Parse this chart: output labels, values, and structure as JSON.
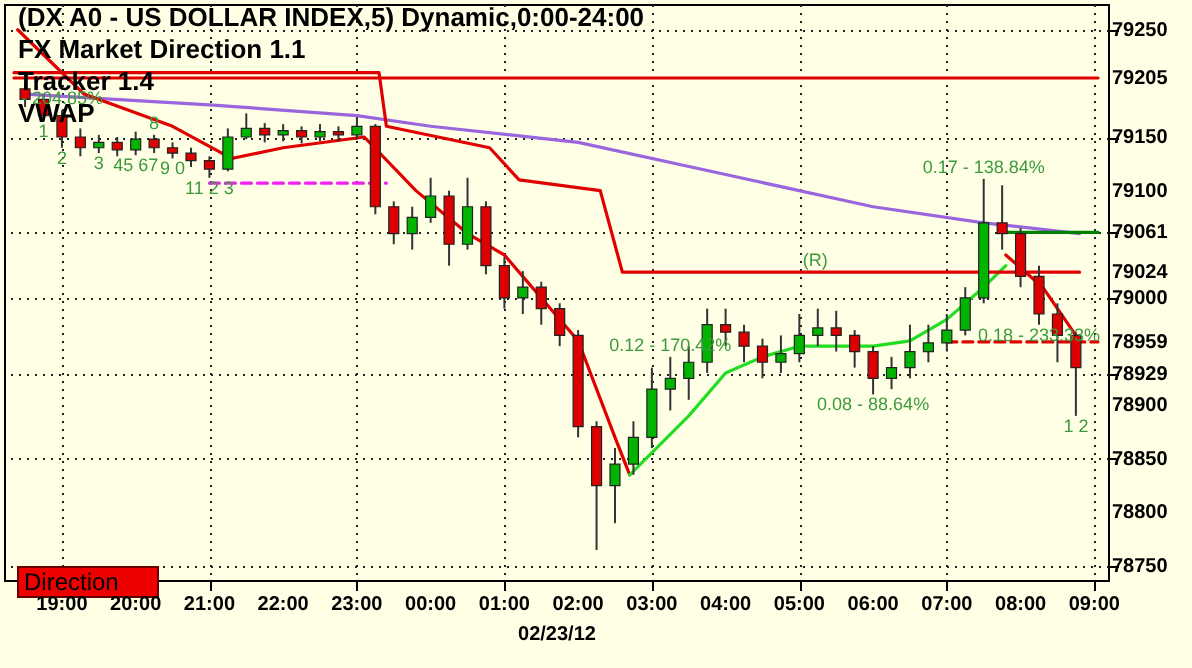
{
  "chart_data": {
    "type": "candlestick",
    "title": "(DX A0 - US DOLLAR INDEX,5) Dynamic,0:00-24:00",
    "xlabel": "02/23/12",
    "x": [
      "--02-22T18:30",
      "--02-22T18:45",
      "--02-22T19:00",
      "--02-22T19:15",
      "--02-22T19:30",
      "--02-22T19:45",
      "--02-22T20:00",
      "--02-22T20:15",
      "--02-22T20:30",
      "--02-22T20:45",
      "--02-22T21:00",
      "--02-22T21:15",
      "--02-22T21:30",
      "--02-22T21:45",
      "--02-22T22:00",
      "--02-22T22:15",
      "--02-22T22:30",
      "--02-22T22:45",
      "--02-22T23:00",
      "--02-22T23:15",
      "--02-22T23:30",
      "--02-22T23:45",
      "--02-23T00:00",
      "--02-23T00:15",
      "--02-23T00:30",
      "--02-23T00:45",
      "--02-23T01:00",
      "--02-23T01:15",
      "--02-23T01:30",
      "--02-23T01:45",
      "--02-23T02:00",
      "--02-23T02:15",
      "--02-23T02:30",
      "--02-23T02:45",
      "--02-23T03:00",
      "--02-23T03:15",
      "--02-23T03:30",
      "--02-23T03:45",
      "--02-23T04:00",
      "--02-23T04:15",
      "--02-23T04:30",
      "--02-23T04:45",
      "--02-23T05:00",
      "--02-23T05:15",
      "--02-23T05:30",
      "--02-23T05:45",
      "--02-23T06:00",
      "--02-23T06:15",
      "--02-23T06:30",
      "--02-23T06:45",
      "--02-23T07:00",
      "--02-23T07:15",
      "--02-23T07:30",
      "--02-23T07:45",
      "--02-23T08:00",
      "--02-23T08:15",
      "--02-23T08:30",
      "--02-23T08:45"
    ],
    "ohlc": [
      [
        79195,
        79200,
        79178,
        79185
      ],
      [
        79185,
        79190,
        79165,
        79170
      ],
      [
        79170,
        79175,
        79140,
        79150
      ],
      [
        79150,
        79158,
        79132,
        79140
      ],
      [
        79140,
        79152,
        79135,
        79145
      ],
      [
        79145,
        79150,
        79132,
        79138
      ],
      [
        79138,
        79155,
        79133,
        79148
      ],
      [
        79148,
        79152,
        79135,
        79140
      ],
      [
        79140,
        79145,
        79130,
        79135
      ],
      [
        79135,
        79140,
        79122,
        79128
      ],
      [
        79128,
        79132,
        79112,
        79120
      ],
      [
        79120,
        79158,
        79118,
        79150
      ],
      [
        79150,
        79172,
        79148,
        79158
      ],
      [
        79158,
        79163,
        79145,
        79152
      ],
      [
        79152,
        79162,
        79146,
        79156
      ],
      [
        79156,
        79160,
        79144,
        79150
      ],
      [
        79150,
        79162,
        79146,
        79155
      ],
      [
        79155,
        79160,
        79146,
        79152
      ],
      [
        79152,
        79168,
        79148,
        79160
      ],
      [
        79160,
        79162,
        79078,
        79085
      ],
      [
        79085,
        79090,
        79050,
        79060
      ],
      [
        79060,
        79085,
        79045,
        79075
      ],
      [
        79075,
        79112,
        79070,
        79095
      ],
      [
        79095,
        79100,
        79030,
        79050
      ],
      [
        79050,
        79112,
        79045,
        79085
      ],
      [
        79085,
        79090,
        79022,
        79030
      ],
      [
        79030,
        79038,
        78990,
        79000
      ],
      [
        79000,
        79025,
        78985,
        79010
      ],
      [
        79010,
        79015,
        78975,
        78990
      ],
      [
        78990,
        78995,
        78955,
        78965
      ],
      [
        78965,
        78970,
        78870,
        78880
      ],
      [
        78880,
        78885,
        78765,
        78825
      ],
      [
        78825,
        78860,
        78790,
        78845
      ],
      [
        78845,
        78885,
        78835,
        78870
      ],
      [
        78870,
        78935,
        78860,
        78915
      ],
      [
        78915,
        78945,
        78895,
        78925
      ],
      [
        78925,
        78955,
        78905,
        78940
      ],
      [
        78940,
        78990,
        78930,
        78975
      ],
      [
        78975,
        78990,
        78955,
        78968
      ],
      [
        78968,
        78975,
        78940,
        78955
      ],
      [
        78955,
        78962,
        78925,
        78940
      ],
      [
        78940,
        78965,
        78930,
        78948
      ],
      [
        78948,
        78985,
        78940,
        78965
      ],
      [
        78965,
        78990,
        78955,
        78972
      ],
      [
        78972,
        78988,
        78950,
        78965
      ],
      [
        78965,
        78970,
        78935,
        78950
      ],
      [
        78950,
        78955,
        78910,
        78925
      ],
      [
        78925,
        78945,
        78915,
        78935
      ],
      [
        78935,
        78975,
        78925,
        78950
      ],
      [
        78950,
        78975,
        78940,
        78958
      ],
      [
        78958,
        78985,
        78950,
        78970
      ],
      [
        78970,
        79010,
        78965,
        79000
      ],
      [
        79000,
        79111,
        78995,
        79070
      ],
      [
        79070,
        79105,
        79045,
        79060
      ],
      [
        79060,
        79065,
        79010,
        79020
      ],
      [
        79020,
        79030,
        78975,
        78985
      ],
      [
        78985,
        78995,
        78940,
        78965
      ],
      [
        78965,
        78968,
        78890,
        78935
      ]
    ],
    "series": [
      {
        "type": "line",
        "color": "#e00000",
        "x": [
          "--02-22T18:21",
          "--02-23T09:03"
        ],
        "values": [
          79205,
          79205
        ]
      },
      {
        "type": "line",
        "color": "#9966dd",
        "x": [
          "--02-22T18:30",
          "--02-22T21:00",
          "--02-22T23:00",
          "--02-23T00:00",
          "--02-23T02:00",
          "--02-23T04:00",
          "--02-23T06:00",
          "--02-23T07:30",
          "--02-23T08:48"
        ],
        "values": [
          79190,
          79180,
          79170,
          79160,
          79145,
          79115,
          79085,
          79070,
          79060
        ]
      },
      {
        "type": "line",
        "color": "#e00000",
        "x": [
          "--02-22T18:24",
          "--02-22T19:18",
          "--02-22T20:30",
          "--02-22T21:18",
          "--02-22T22:00",
          "--02-22T23:06",
          "--02-22T23:48",
          "--02-23T00:30",
          "--02-23T01:00",
          "--02-23T02:00",
          "--02-23T02:30",
          "--02-23T02:42"
        ],
        "values": [
          79250,
          79190,
          79160,
          79130,
          79140,
          79150,
          79100,
          79060,
          79040,
          78960,
          78870,
          78835
        ]
      },
      {
        "type": "line",
        "color": "#22dd22",
        "x": [
          "--02-23T02:42",
          "--02-23T03:30",
          "--02-23T04:00",
          "--02-23T04:30",
          "--02-23T05:00",
          "--02-23T06:00",
          "--02-23T06:30",
          "--02-23T07:00",
          "--02-23T07:30",
          "--02-23T07:48"
        ],
        "values": [
          78835,
          78890,
          78930,
          78945,
          78955,
          78955,
          78960,
          78980,
          79010,
          79030
        ]
      },
      {
        "type": "line",
        "color": "#e00000",
        "x": [
          "--02-23T07:48",
          "--02-23T08:18",
          "--02-23T08:36",
          "--02-23T08:48"
        ],
        "values": [
          79040,
          79010,
          78980,
          78960
        ]
      },
      {
        "type": "line",
        "color": "#e00000",
        "x": [
          "--02-22T18:21",
          "--02-22T23:18",
          "--02-22T23:24",
          "--02-23T00:48",
          "--02-23T01:12",
          "--02-23T02:18",
          "--02-23T02:36",
          "--02-23T08:48"
        ],
        "values": [
          79210,
          79210,
          79160,
          79140,
          79110,
          79100,
          79024,
          79024
        ]
      },
      {
        "type": "line",
        "color": "#ee22ee",
        "line_style": "dashed",
        "x": [
          "--02-22T21:00",
          "--02-22T23:24"
        ],
        "values": [
          79107,
          79107
        ]
      },
      {
        "type": "line",
        "color": "#008000",
        "x": [
          "--02-23T07:42",
          "--02-23T09:03"
        ],
        "values": [
          79061,
          79061
        ]
      },
      {
        "type": "line",
        "color": "#e00000",
        "line_style": "dashed",
        "x": [
          "--02-23T07:00",
          "--02-23T09:03"
        ],
        "values": [
          78959,
          78959
        ]
      }
    ],
    "xlim": [
      "--02-22T18:21",
      "--02-23T09:03"
    ],
    "xticks": [
      {
        "value": "--02-22T19:00",
        "label": "19:00"
      },
      {
        "value": "--02-22T20:00",
        "label": "20:00"
      },
      {
        "value": "--02-22T21:00",
        "label": "21:00"
      },
      {
        "value": "--02-22T22:00",
        "label": "22:00"
      },
      {
        "value": "--02-22T23:00",
        "label": "23:00"
      },
      {
        "value": "--02-23T00:00",
        "label": "00:00"
      },
      {
        "value": "--02-23T01:00",
        "label": "01:00"
      },
      {
        "value": "--02-23T02:00",
        "label": "02:00"
      },
      {
        "value": "--02-23T03:00",
        "label": "03:00"
      },
      {
        "value": "--02-23T04:00",
        "label": "04:00"
      },
      {
        "value": "--02-23T05:00",
        "label": "05:00"
      },
      {
        "value": "--02-23T06:00",
        "label": "06:00"
      },
      {
        "value": "--02-23T07:00",
        "label": "07:00"
      },
      {
        "value": "--02-23T08:00",
        "label": "08:00"
      },
      {
        "value": "--02-23T09:00",
        "label": "09:00"
      }
    ],
    "ylim": [
      78737,
      79274
    ],
    "yticks": [
      78750,
      78800,
      78850,
      78900,
      78929,
      78959,
      79000,
      79024,
      79061,
      79100,
      79150,
      79205,
      79250
    ],
    "grid": true,
    "annotations": [
      "FX Market Direction 1.1",
      "Tracker 1.4",
      "VWAP",
      "Direction",
      {
        "text": "- 204.85%",
        "x": "--02-22T19:00",
        "y": 79175
      },
      {
        "text": "1",
        "x": "--02-22T18:45",
        "y": 79165
      },
      {
        "text": "2",
        "x": "--02-22T19:00",
        "y": 79140
      },
      {
        "text": "3",
        "x": "--02-22T19:30",
        "y": 79135
      },
      {
        "text": "45 67",
        "x": "--02-22T20:00",
        "y": 79133
      },
      {
        "text": "8",
        "x": "--02-22T20:15",
        "y": 79152
      },
      {
        "text": "9 0",
        "x": "--02-22T20:30",
        "y": 79130
      },
      {
        "text": "11 2 3",
        "x": "--02-22T21:00",
        "y": 79112
      },
      {
        "text": "0.12 - 170.42%",
        "x": "--02-23T03:15",
        "y": 78945
      },
      {
        "text": "0.08 - 88.64%",
        "x": "--02-23T06:00",
        "y": 78910
      },
      {
        "text": "0.17 - 138.84%",
        "x": "--02-23T07:30",
        "y": 79111
      },
      {
        "text": "0.18 - 233.33%",
        "x": "--02-23T08:15",
        "y": 78975
      },
      {
        "text": "(R)",
        "x": "--02-23T05:13",
        "y": 79024
      },
      {
        "text": "1 2",
        "x": "--02-23T08:45",
        "y": 78890
      }
    ]
  }
}
